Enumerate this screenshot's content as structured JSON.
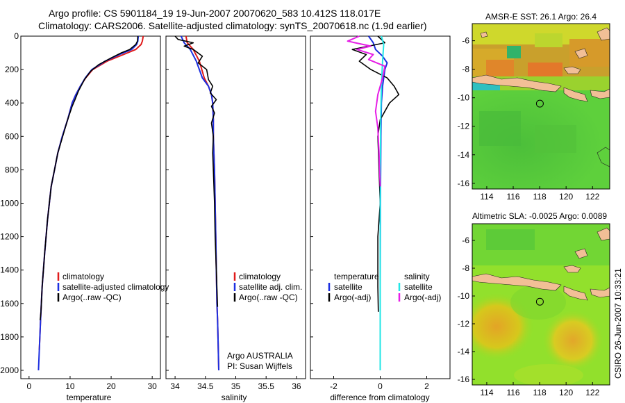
{
  "title": {
    "line1": "Argo profile: CS 5901184_19 19-Jun-2007 20070620_583 10.412S 118.017E",
    "line2": "Climatology: CARS2006. Satellite-adjusted climatology: synTS_20070618.nc (1.9d earlier)"
  },
  "side_stamp": "CSIRO 26-Jun-2007 10:33:21",
  "colors": {
    "climatology": "#e01b1b",
    "satellite": "#1c2fe0",
    "argo": "#000000",
    "sal_satellite": "#22e6e6",
    "sal_argo": "#e61ee6",
    "land": "#f2bf96"
  },
  "depth_axis": {
    "ticks": [
      "0",
      "200",
      "400",
      "600",
      "800",
      "1000",
      "1200",
      "1400",
      "1600",
      "1800",
      "2000"
    ],
    "ylim": [
      0,
      2050
    ]
  },
  "map_marker": {
    "lon": 118.017,
    "lat": -10.412
  },
  "chart_data": [
    {
      "type": "line",
      "xlabel": "temperature",
      "ylabel": "",
      "xlim": [
        -2,
        32
      ],
      "ylim": [
        0,
        2050
      ],
      "y_reversed": true,
      "x_ticks": [
        "0",
        "10",
        "20",
        "30"
      ],
      "legend": [
        "climatology",
        "satellite-adjusted climatology",
        "Argo(..raw -QC)"
      ],
      "series": [
        {
          "name": "climatology",
          "color_key": "climatology",
          "x": [
            27.8,
            27.6,
            27.3,
            26.0,
            23.0,
            19.0,
            15.5,
            13.8,
            12.5,
            11.4,
            10.5,
            9.4,
            8.1,
            7.0,
            6.2,
            5.4,
            4.5,
            3.8,
            3.2,
            2.8,
            2.5
          ],
          "y": [
            0,
            30,
            50,
            80,
            110,
            150,
            200,
            250,
            300,
            350,
            400,
            500,
            600,
            700,
            800,
            900,
            1100,
            1300,
            1500,
            1700,
            1880
          ]
        },
        {
          "name": "satellite-adjusted climatology",
          "color_key": "satellite",
          "x": [
            26.6,
            26.5,
            26.2,
            25.0,
            22.0,
            18.5,
            15.3,
            13.7,
            12.5,
            11.4,
            10.5,
            9.4,
            8.1,
            7.0,
            6.2,
            5.4,
            4.5,
            3.8,
            3.2,
            2.8,
            2.5,
            2.3
          ],
          "y": [
            0,
            30,
            50,
            80,
            110,
            150,
            200,
            250,
            300,
            350,
            400,
            500,
            600,
            700,
            800,
            900,
            1100,
            1300,
            1500,
            1700,
            1880,
            2000
          ]
        },
        {
          "name": "Argo(..raw -QC)",
          "color_key": "argo",
          "x": [
            26.5,
            26.4,
            26.0,
            24.5,
            22.5,
            20.0,
            17.0,
            15.0,
            13.5,
            12.0,
            11.2,
            10.5,
            9.4,
            8.2,
            7.0,
            6.2,
            5.4,
            4.5,
            3.8,
            3.2,
            2.9,
            2.7
          ],
          "y": [
            0,
            30,
            50,
            80,
            100,
            130,
            170,
            210,
            260,
            330,
            380,
            420,
            500,
            600,
            700,
            800,
            900,
            1100,
            1300,
            1500,
            1650,
            1700
          ]
        }
      ]
    },
    {
      "type": "line",
      "xlabel": "salinity",
      "ylabel": "",
      "xlim": [
        33.85,
        36.15
      ],
      "ylim": [
        0,
        2050
      ],
      "y_reversed": true,
      "x_ticks": [
        "34",
        "34.5",
        "35",
        "35.5",
        "36"
      ],
      "legend": [
        "climatology",
        "satellite adj. clim.",
        "Argo(..raw -QC)"
      ],
      "annotation": [
        "Argo AUSTRALIA",
        "PI: Susan Wijffels"
      ],
      "series": [
        {
          "name": "climatology",
          "color_key": "climatology",
          "x": [
            34.18,
            34.2,
            34.3,
            34.4,
            34.48,
            34.55,
            34.6,
            34.62,
            34.63,
            34.63,
            34.64,
            34.65,
            34.66,
            34.67,
            34.68,
            34.69,
            34.7,
            34.71,
            34.72
          ],
          "y": [
            0,
            40,
            80,
            150,
            250,
            300,
            350,
            400,
            500,
            600,
            700,
            800,
            1000,
            1200,
            1400,
            1600,
            1700,
            1850,
            2000
          ]
        },
        {
          "name": "satellite adj. clim.",
          "color_key": "satellite",
          "x": [
            34.1,
            34.15,
            34.25,
            34.35,
            34.45,
            34.55,
            34.6,
            34.62,
            34.63,
            34.63,
            34.64,
            34.65,
            34.66,
            34.67,
            34.68,
            34.69,
            34.7,
            34.71,
            34.72
          ],
          "y": [
            0,
            40,
            80,
            150,
            250,
            300,
            350,
            400,
            500,
            600,
            700,
            800,
            1000,
            1200,
            1400,
            1600,
            1700,
            1850,
            2000
          ]
        },
        {
          "name": "Argo(..raw -QC)",
          "color_key": "argo",
          "x": [
            34.0,
            34.05,
            34.3,
            34.15,
            34.3,
            34.45,
            34.38,
            34.52,
            34.55,
            34.62,
            34.58,
            34.68,
            34.6,
            34.65,
            34.6,
            34.63,
            34.62,
            34.63,
            34.65,
            34.66,
            34.68,
            34.7
          ],
          "y": [
            0,
            20,
            40,
            60,
            80,
            120,
            160,
            200,
            260,
            300,
            340,
            380,
            420,
            460,
            520,
            600,
            700,
            800,
            1000,
            1200,
            1400,
            1620
          ]
        }
      ]
    },
    {
      "type": "line",
      "xlabel": "difference from climatology",
      "ylabel": "",
      "xlim": [
        -3,
        3
      ],
      "ylim": [
        0,
        2050
      ],
      "y_reversed": true,
      "x_ticks": [
        "-2",
        "0",
        "2"
      ],
      "legend_temperature": [
        "temperature",
        "satellite",
        "Argo(-adj)"
      ],
      "legend_salinity": [
        "salinity",
        "satellite",
        "Argo(-adj)"
      ],
      "series": [
        {
          "name": "temperature satellite",
          "color_key": "satellite",
          "x": [
            -0.5,
            -0.3,
            -0.2,
            0.1,
            0.3,
            0.2,
            0.1,
            0.05,
            0.03,
            0.02,
            0.01,
            0.0,
            0.0
          ],
          "y": [
            0,
            40,
            80,
            120,
            160,
            200,
            300,
            400,
            600,
            800,
            1000,
            1500,
            2000
          ]
        },
        {
          "name": "temperature Argo(-adj)",
          "color_key": "argo",
          "x": [
            -0.1,
            0.2,
            -1.2,
            -0.6,
            -0.9,
            -0.4,
            0.3,
            0.6,
            0.8,
            0.4,
            0.2,
            0.0,
            -0.1,
            -0.05,
            0.0,
            -0.1,
            -0.1,
            -0.08
          ],
          "y": [
            0,
            40,
            80,
            110,
            150,
            200,
            250,
            300,
            350,
            400,
            450,
            500,
            600,
            800,
            1000,
            1200,
            1500,
            1650
          ]
        },
        {
          "name": "salinity satellite",
          "color_key": "sal_satellite",
          "x": [
            0.05,
            0.15,
            0.1,
            0.05,
            0.02,
            0.01,
            0.0,
            0.0
          ],
          "y": [
            0,
            50,
            150,
            300,
            500,
            800,
            1200,
            2000
          ]
        },
        {
          "name": "salinity Argo(-adj)",
          "color_key": "sal_argo",
          "x": [
            -0.9,
            -1.4,
            -0.4,
            -1.0,
            -0.3,
            -0.5,
            0.2,
            0.1,
            -0.1,
            -0.2,
            -0.1,
            -0.05,
            0.0
          ],
          "y": [
            0,
            30,
            60,
            80,
            110,
            140,
            180,
            250,
            350,
            450,
            550,
            700,
            900
          ]
        }
      ]
    },
    {
      "type": "heatmap",
      "title": "AMSR-E SST: 26.1 Argo: 26.4",
      "x_ticks": [
        "114",
        "116",
        "118",
        "120",
        "122"
      ],
      "y_ticks": [
        "-6",
        "-8",
        "-10",
        "-12",
        "-14",
        "-16"
      ],
      "xlim": [
        112.9,
        123.3
      ],
      "ylim": [
        -16.4,
        -4.8
      ]
    },
    {
      "type": "heatmap",
      "title": "Altimetric SLA: -0.0025 Argo: 0.0089",
      "x_ticks": [
        "114",
        "116",
        "118",
        "120",
        "122"
      ],
      "y_ticks": [
        "-6",
        "-8",
        "-10",
        "-12",
        "-14",
        "-16"
      ],
      "xlim": [
        112.9,
        123.3
      ],
      "ylim": [
        -16.4,
        -4.8
      ]
    }
  ]
}
